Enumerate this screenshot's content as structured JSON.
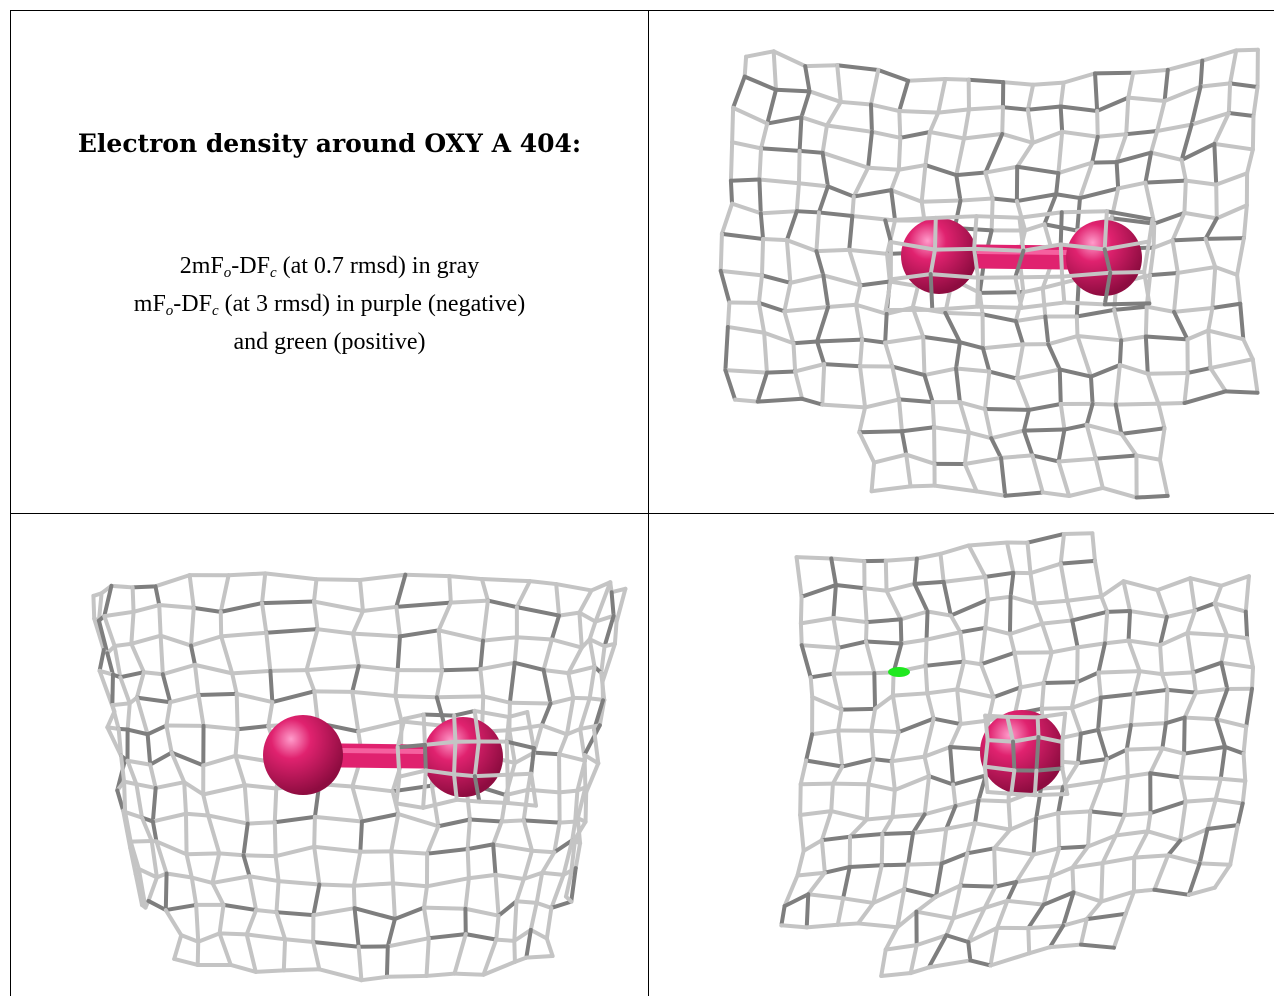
{
  "title": "Electron density around OXY A 404:",
  "legend": {
    "line1": {
      "a": "2mF",
      "a_sub": "o",
      "b": "-DF",
      "b_sub": "c",
      "rest": " (at 0.7 rmsd) in gray"
    },
    "line2": {
      "a": "mF",
      "a_sub": "o",
      "b": "-DF",
      "b_sub": "c",
      "rest": " (at 3 rmsd) in purple (negative)"
    },
    "line3": "and green (positive)"
  },
  "colors": {
    "mesh": "#c4c4c4",
    "mesh_dark": "#7e7e7e",
    "atom": "#e0226f",
    "positive_density": "#1fe81f"
  },
  "views": [
    {
      "name": "view-top-right",
      "atoms": 2
    },
    {
      "name": "view-bottom-left",
      "atoms": 2
    },
    {
      "name": "view-bottom-right",
      "atoms": 1,
      "positive_blob": true
    }
  ]
}
